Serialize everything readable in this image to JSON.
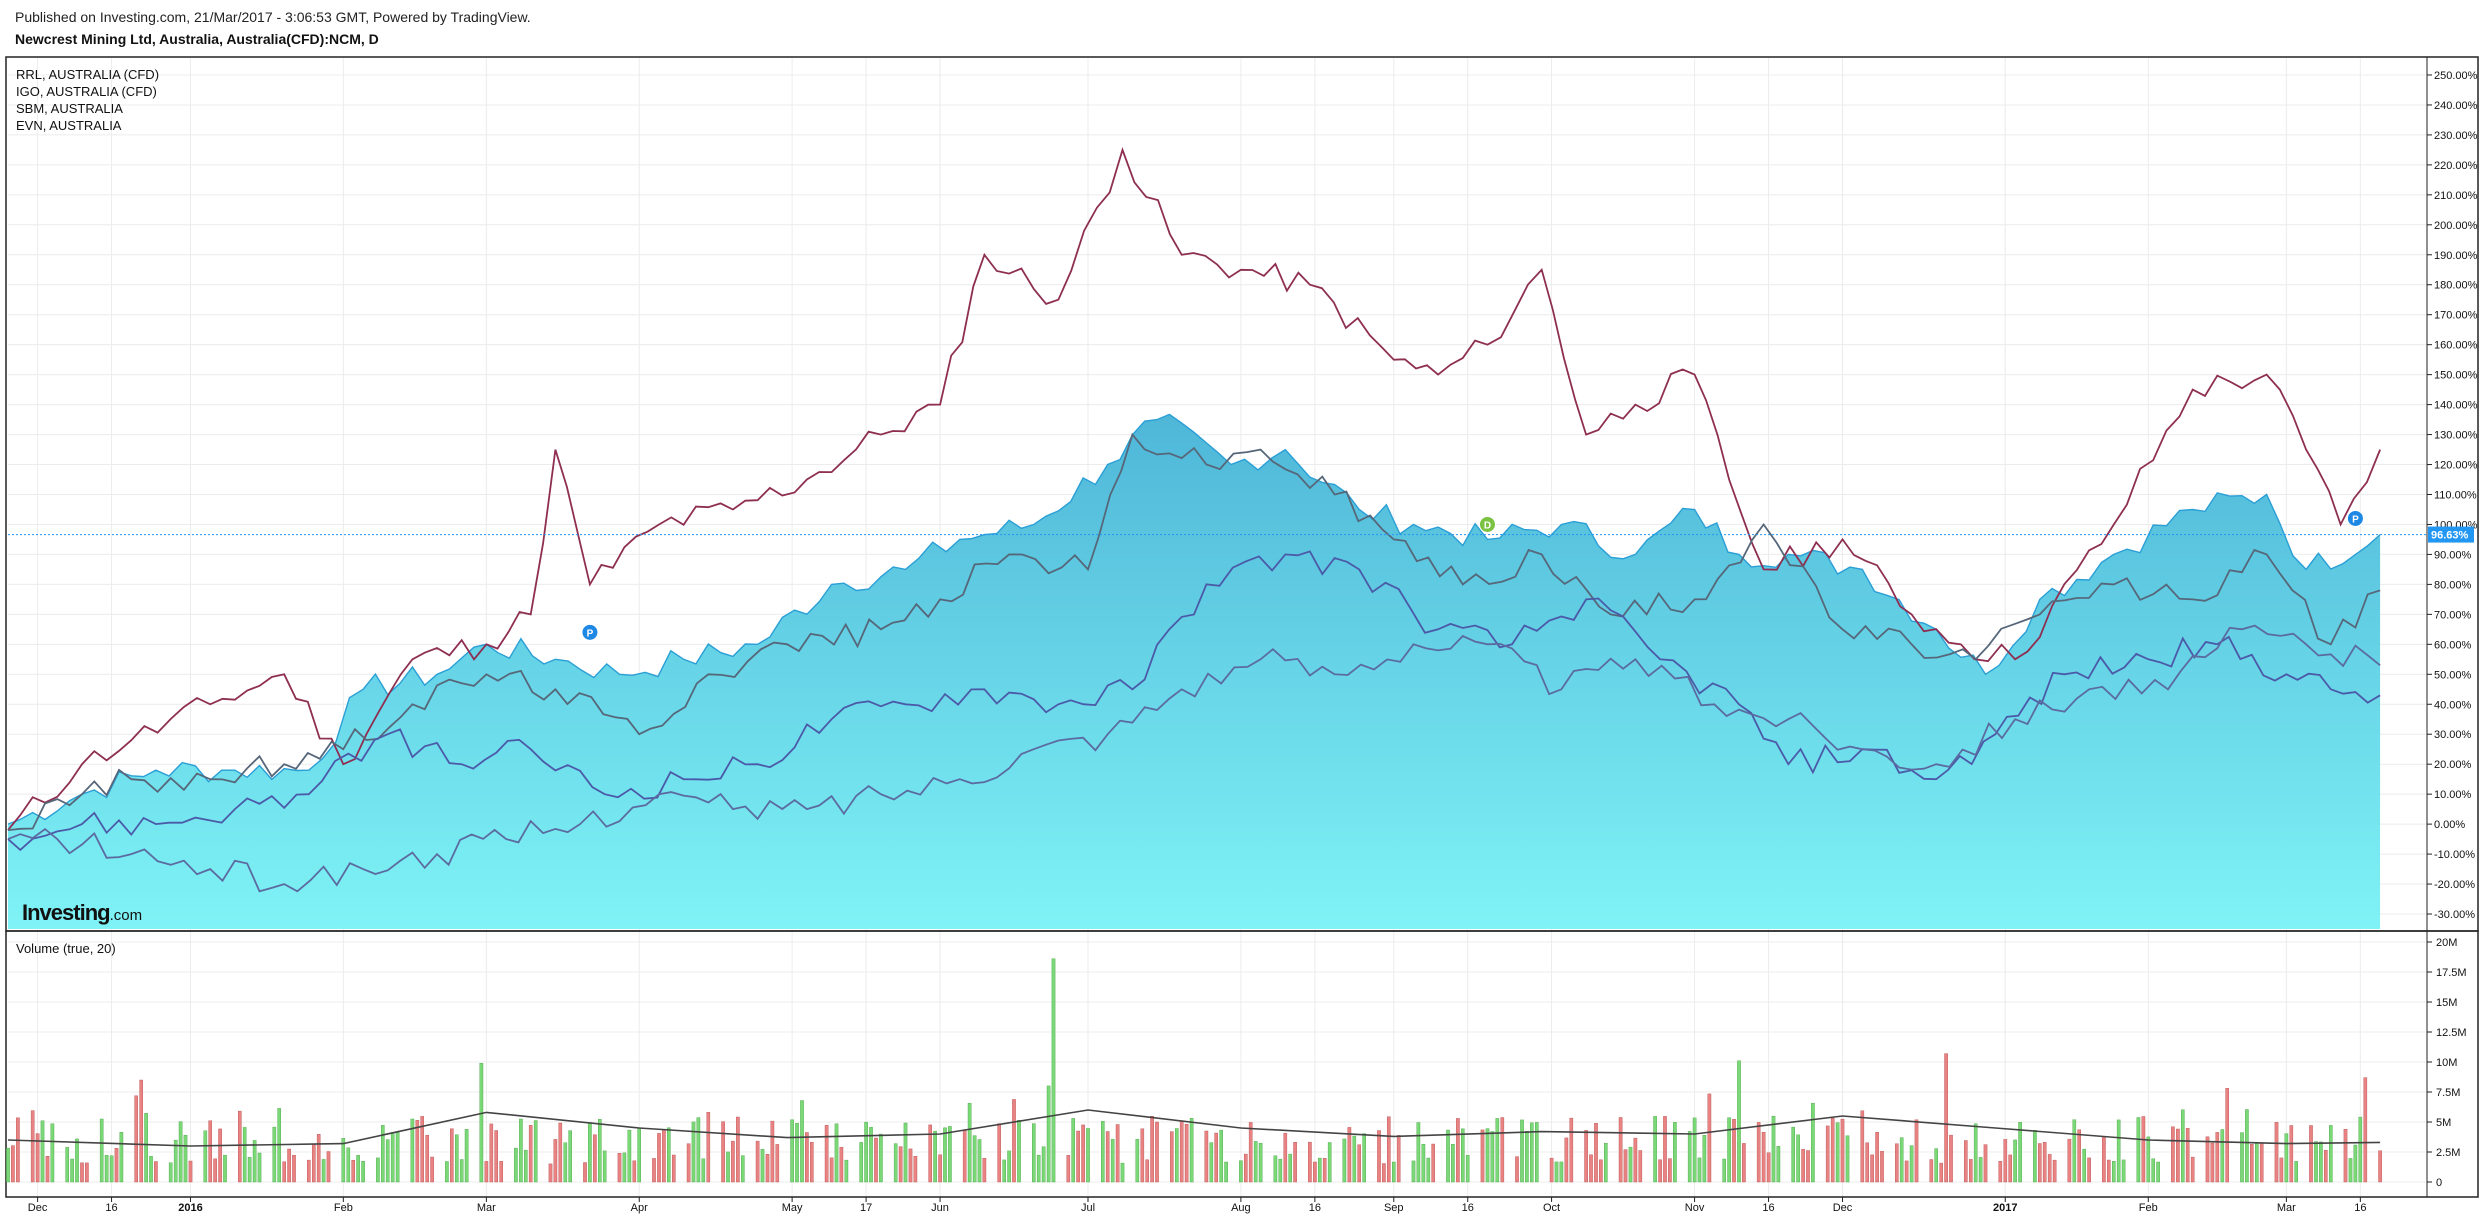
{
  "header": {
    "published": "Published on Investing.com, 21/Mar/2017 - 3:06:53 GMT, Powered by TradingView.",
    "instrument": "Newcrest Mining Ltd, Australia, Australia(CFD):NCM, D"
  },
  "legend": [
    "RRL, AUSTRALIA (CFD)",
    "IGO, AUSTRALIA (CFD)",
    "SBM, AUSTRALIA",
    "EVN, AUSTRALIA"
  ],
  "watermark": {
    "brand": "Investing",
    "suffix": ".com"
  },
  "volume_title": "Volume (true, 20)",
  "markers": {
    "dividend": "D",
    "p_first": "P",
    "p_second": "P"
  },
  "chart_data": [
    {
      "type": "line",
      "panel": "price",
      "yunit": "%",
      "ylim": [
        -35,
        255
      ],
      "y_ticks": [
        "250.00%",
        "240.00%",
        "230.00%",
        "220.00%",
        "210.00%",
        "200.00%",
        "190.00%",
        "180.00%",
        "170.00%",
        "160.00%",
        "150.00%",
        "140.00%",
        "130.00%",
        "120.00%",
        "110.00%",
        "100.00%",
        "90.00%",
        "80.00%",
        "70.00%",
        "60.00%",
        "50.00%",
        "40.00%",
        "30.00%",
        "20.00%",
        "10.00%",
        "0.00%",
        "-10.00%",
        "-20.00%",
        "-30.00%"
      ],
      "x_ticks": [
        "Dec",
        "16",
        "2016",
        "Feb",
        "Mar",
        "Apr",
        "May",
        "17",
        "Jun",
        "Jul",
        "Aug",
        "16",
        "Sep",
        "16",
        "Oct",
        "Nov",
        "16",
        "Dec",
        "2017",
        "Feb",
        "Mar",
        "16"
      ],
      "current_value_label": "96.63%",
      "current_value": 96.63,
      "grid": true,
      "legend_position": "top-left",
      "colors": {
        "ncm_fill_top": "#4fb6d8",
        "ncm_fill_bottom": "#7ff3f6",
        "ncm_line": "#2a9fd6",
        "rrl": "#8e2f52",
        "igo": "#56677a",
        "sbm": "#4b5aa8",
        "evn": "#5b6ba0",
        "price_tag": "#2196f3"
      },
      "series": [
        {
          "name": "RRL, AUSTRALIA (CFD)",
          "x": [
            "2015-11-25",
            "2015-12-10",
            "2015-12-20",
            "2016-01-05",
            "2016-01-20",
            "2016-02-01",
            "2016-02-15",
            "2016-03-01",
            "2016-03-10",
            "2016-03-15",
            "2016-03-22",
            "2016-04-05",
            "2016-04-20",
            "2016-05-05",
            "2016-05-20",
            "2016-06-01",
            "2016-06-10",
            "2016-06-25",
            "2016-07-08",
            "2016-07-20",
            "2016-08-01",
            "2016-08-15",
            "2016-09-01",
            "2016-09-10",
            "2016-09-20",
            "2016-10-01",
            "2016-10-10",
            "2016-10-20",
            "2016-11-01",
            "2016-11-08",
            "2016-11-15",
            "2016-12-01",
            "2016-12-15",
            "2016-12-25",
            "2017-01-05",
            "2017-01-25",
            "2017-02-10",
            "2017-02-25",
            "2017-03-05",
            "2017-03-12",
            "2017-03-20"
          ],
          "values": [
            -2,
            20,
            28,
            40,
            50,
            20,
            55,
            60,
            70,
            125,
            80,
            100,
            105,
            115,
            130,
            140,
            190,
            175,
            225,
            190,
            185,
            180,
            155,
            150,
            160,
            185,
            130,
            140,
            150,
            115,
            85,
            95,
            70,
            60,
            55,
            100,
            145,
            150,
            125,
            100,
            125
          ]
        },
        {
          "name": "IGO, AUSTRALIA (CFD)",
          "x": [
            "2015-11-25",
            "2015-12-10",
            "2015-12-20",
            "2016-01-05",
            "2016-01-20",
            "2016-02-01",
            "2016-02-15",
            "2016-03-01",
            "2016-03-15",
            "2016-04-01",
            "2016-04-15",
            "2016-05-01",
            "2016-05-20",
            "2016-06-01",
            "2016-06-15",
            "2016-07-01",
            "2016-07-10",
            "2016-07-25",
            "2016-08-05",
            "2016-08-20",
            "2016-09-01",
            "2016-09-15",
            "2016-10-01",
            "2016-10-15",
            "2016-11-01",
            "2016-11-15",
            "2016-12-01",
            "2016-12-15",
            "2016-12-28",
            "2017-01-10",
            "2017-01-25",
            "2017-02-10",
            "2017-02-25",
            "2017-03-10",
            "2017-03-20"
          ],
          "values": [
            -2,
            10,
            15,
            15,
            20,
            25,
            40,
            50,
            45,
            30,
            50,
            60,
            65,
            75,
            90,
            85,
            130,
            120,
            125,
            110,
            95,
            80,
            90,
            70,
            75,
            100,
            65,
            60,
            55,
            70,
            80,
            75,
            90,
            60,
            78
          ]
        },
        {
          "name": "SBM, AUSTRALIA",
          "x": [
            "2015-11-25",
            "2015-12-10",
            "2015-12-25",
            "2016-01-10",
            "2016-01-25",
            "2016-02-10",
            "2016-02-25",
            "2016-03-10",
            "2016-03-25",
            "2016-04-10",
            "2016-04-25",
            "2016-05-10",
            "2016-05-25",
            "2016-06-10",
            "2016-06-25",
            "2016-07-10",
            "2016-07-25",
            "2016-08-10",
            "2016-08-25",
            "2016-09-10",
            "2016-09-25",
            "2016-10-10",
            "2016-10-25",
            "2016-11-10",
            "2016-11-20",
            "2016-12-05",
            "2016-12-20",
            "2017-01-01",
            "2017-01-15",
            "2017-02-01",
            "2017-02-15",
            "2017-03-01",
            "2017-03-10",
            "2017-03-20"
          ],
          "values": [
            -5,
            0,
            0,
            5,
            10,
            30,
            20,
            25,
            10,
            15,
            20,
            35,
            40,
            45,
            40,
            45,
            80,
            90,
            85,
            65,
            60,
            75,
            55,
            40,
            20,
            25,
            15,
            30,
            50,
            55,
            60,
            50,
            45,
            43
          ]
        },
        {
          "name": "EVN, AUSTRALIA",
          "x": [
            "2015-11-25",
            "2015-12-05",
            "2015-12-20",
            "2016-01-05",
            "2016-01-20",
            "2016-02-05",
            "2016-02-20",
            "2016-03-05",
            "2016-03-20",
            "2016-04-05",
            "2016-04-20",
            "2016-05-05",
            "2016-05-20",
            "2016-06-05",
            "2016-06-20",
            "2016-07-05",
            "2016-07-20",
            "2016-08-05",
            "2016-08-20",
            "2016-09-05",
            "2016-09-20",
            "2016-10-05",
            "2016-10-20",
            "2016-11-05",
            "2016-11-20",
            "2016-12-05",
            "2016-12-20",
            "2017-01-05",
            "2017-01-20",
            "2017-02-05",
            "2017-02-20",
            "2017-03-05",
            "2017-03-20"
          ],
          "values": [
            -5,
            -5,
            -10,
            -15,
            -20,
            -15,
            -10,
            -5,
            0,
            10,
            5,
            5,
            10,
            15,
            25,
            30,
            45,
            55,
            50,
            60,
            60,
            45,
            55,
            40,
            35,
            25,
            20,
            35,
            45,
            45,
            65,
            60,
            53
          ]
        },
        {
          "name": "",
          "x": [
            "2015-11-25",
            "2015-12-10",
            "2015-12-25",
            "2016-01-10",
            "2016-01-25",
            "2016-02-05",
            "2016-02-20",
            "2016-03-01",
            "2016-03-15",
            "2016-03-28",
            "2016-04-10",
            "2016-04-25",
            "2016-05-10",
            "2016-05-25",
            "2016-06-05",
            "2016-06-20",
            "2016-07-05",
            "2016-07-15",
            "2016-07-30",
            "2016-08-10",
            "2016-08-25",
            "2016-09-05",
            "2016-09-20",
            "2016-10-05",
            "2016-10-20",
            "2016-11-01",
            "2016-11-10",
            "2016-11-20",
            "2016-12-05",
            "2016-12-20",
            "2016-12-30",
            "2017-01-10",
            "2017-01-25",
            "2017-02-10",
            "2017-02-25",
            "2017-03-05",
            "2017-03-20"
          ],
          "values": [
            0,
            10,
            18,
            18,
            18,
            45,
            50,
            60,
            55,
            50,
            55,
            60,
            80,
            85,
            95,
            100,
            120,
            135,
            120,
            125,
            105,
            100,
            95,
            100,
            90,
            105,
            90,
            90,
            85,
            65,
            50,
            75,
            90,
            105,
            110,
            85,
            96.63
          ]
        }
      ]
    },
    {
      "type": "bar",
      "panel": "volume",
      "title": "Volume (true, 20)",
      "ylim": [
        0,
        20
      ],
      "yunit": "M",
      "y_ticks": [
        "20M",
        "17.5M",
        "15M",
        "12.5M",
        "10M",
        "7.5M",
        "5M",
        "2.5M",
        "0"
      ],
      "x_ticks": [
        "Dec",
        "16",
        "2016",
        "Feb",
        "Mar",
        "Apr",
        "May",
        "17",
        "Jun",
        "Jul",
        "Aug",
        "16",
        "Sep",
        "16",
        "Oct",
        "Nov",
        "16",
        "Dec",
        "2017",
        "Feb",
        "Mar",
        "16"
      ],
      "colors": {
        "up": "#7bd877",
        "down": "#e98383",
        "ma": "#444444"
      },
      "notable_bars": [
        {
          "x": "2016-06-24",
          "value": 18.6,
          "direction": "up"
        },
        {
          "x": "2016-12-22",
          "value": 10.7,
          "direction": "down"
        },
        {
          "x": "2016-11-10",
          "value": 10.1,
          "direction": "up"
        },
        {
          "x": "2017-03-17",
          "value": 8.7,
          "direction": "down"
        },
        {
          "x": "2016-02-29",
          "value": 9.9,
          "direction": "up"
        },
        {
          "x": "2015-12-22",
          "value": 8.5,
          "direction": "down"
        }
      ],
      "moving_average": {
        "x": [
          "2015-11-25",
          "2016-01-01",
          "2016-02-01",
          "2016-03-01",
          "2016-04-01",
          "2016-05-01",
          "2016-06-01",
          "2016-07-01",
          "2016-08-01",
          "2016-09-01",
          "2016-10-01",
          "2016-11-01",
          "2016-12-01",
          "2017-01-01",
          "2017-02-01",
          "2017-03-01",
          "2017-03-20"
        ],
        "values": [
          3.5,
          3.0,
          3.2,
          5.8,
          4.5,
          3.7,
          4.0,
          6.0,
          4.5,
          3.8,
          4.2,
          4.0,
          5.5,
          4.5,
          3.5,
          3.2,
          3.3
        ]
      }
    }
  ]
}
